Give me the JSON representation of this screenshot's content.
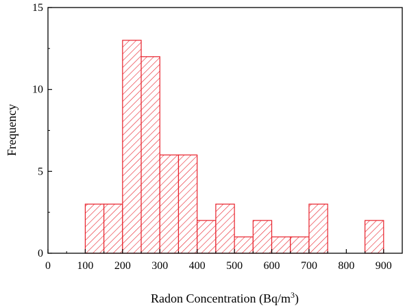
{
  "chart_data": {
    "type": "bar",
    "xlabel": "Radon Concentration (Bq/m",
    "xlabel_superscript": "3",
    "xlabel_suffix": ")",
    "ylabel": "Frequency",
    "xlim": [
      0,
      950
    ],
    "ylim": [
      0,
      15
    ],
    "x_ticks": [
      "0",
      "100",
      "200",
      "300",
      "400",
      "500",
      "600",
      "700",
      "800",
      "900"
    ],
    "y_ticks": [
      "0",
      "5",
      "10",
      "15"
    ],
    "bins": [
      {
        "start": 100,
        "end": 150,
        "count": 3
      },
      {
        "start": 150,
        "end": 200,
        "count": 3
      },
      {
        "start": 200,
        "end": 250,
        "count": 13
      },
      {
        "start": 250,
        "end": 300,
        "count": 12
      },
      {
        "start": 300,
        "end": 350,
        "count": 6
      },
      {
        "start": 350,
        "end": 400,
        "count": 6
      },
      {
        "start": 400,
        "end": 450,
        "count": 2
      },
      {
        "start": 450,
        "end": 500,
        "count": 3
      },
      {
        "start": 500,
        "end": 550,
        "count": 1
      },
      {
        "start": 550,
        "end": 600,
        "count": 2
      },
      {
        "start": 600,
        "end": 650,
        "count": 1
      },
      {
        "start": 650,
        "end": 700,
        "count": 1
      },
      {
        "start": 700,
        "end": 750,
        "count": 3
      },
      {
        "start": 750,
        "end": 800,
        "count": 0
      },
      {
        "start": 800,
        "end": 850,
        "count": 0
      },
      {
        "start": 850,
        "end": 900,
        "count": 2
      }
    ],
    "bar_color": "#e8202a",
    "bar_pattern": "diagonal-hatch",
    "grid": false,
    "legend": "none"
  }
}
